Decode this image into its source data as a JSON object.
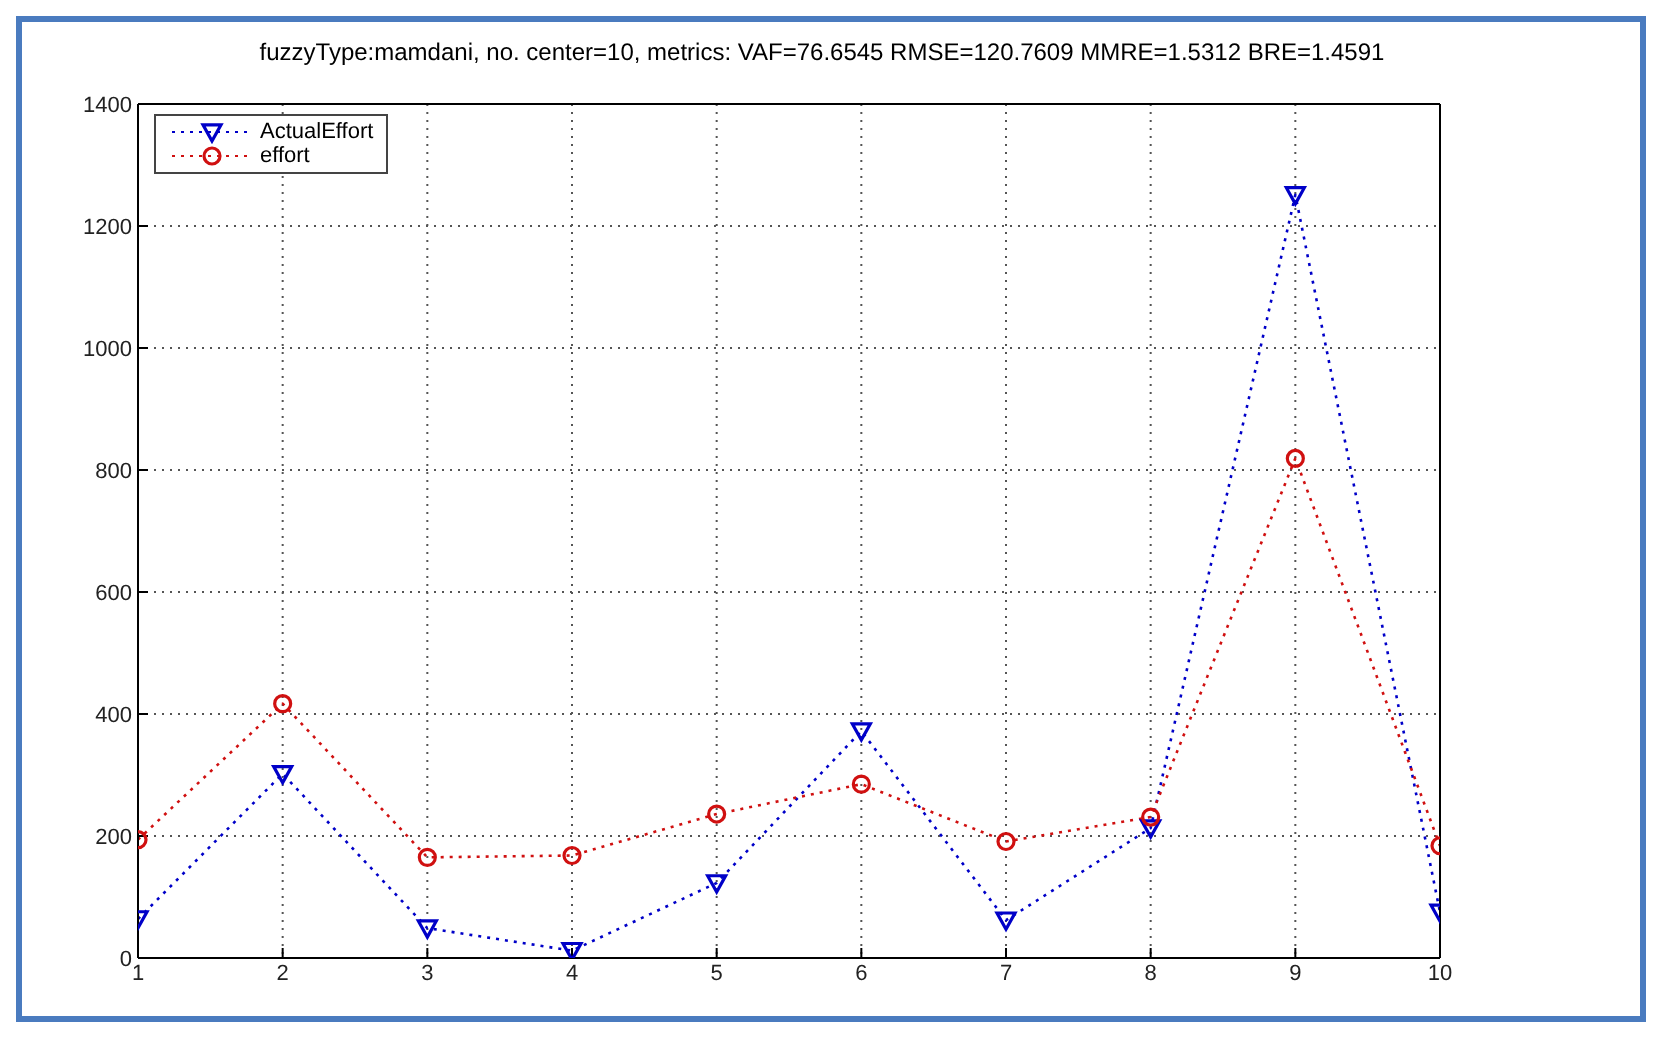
{
  "chart_data": {
    "type": "line",
    "title": "fuzzyType:mamdani, no. center=10, metrics: VAF=76.6545 RMSE=120.7609 MMRE=1.5312 BRE=1.4591",
    "x": [
      1,
      2,
      3,
      4,
      5,
      6,
      7,
      8,
      9,
      10
    ],
    "series": [
      {
        "name": "ActualEffort",
        "color": "#0000c8",
        "marker": "triangle",
        "values": [
          64,
          302,
          49,
          12,
          123,
          372,
          62,
          213,
          1251,
          75
        ]
      },
      {
        "name": "effort",
        "color": "#d01010",
        "marker": "circle",
        "values": [
          194,
          417,
          165,
          168,
          236,
          285,
          191,
          231,
          819,
          184
        ]
      }
    ],
    "xlim": [
      1,
      10
    ],
    "xticks": [
      1,
      2,
      3,
      4,
      5,
      6,
      7,
      8,
      9,
      10
    ],
    "ylim": [
      0,
      1400
    ],
    "yticks": [
      0,
      200,
      400,
      600,
      800,
      1000,
      1200,
      1400
    ],
    "grid": true,
    "legend": "top left",
    "line_style": "dotted"
  }
}
